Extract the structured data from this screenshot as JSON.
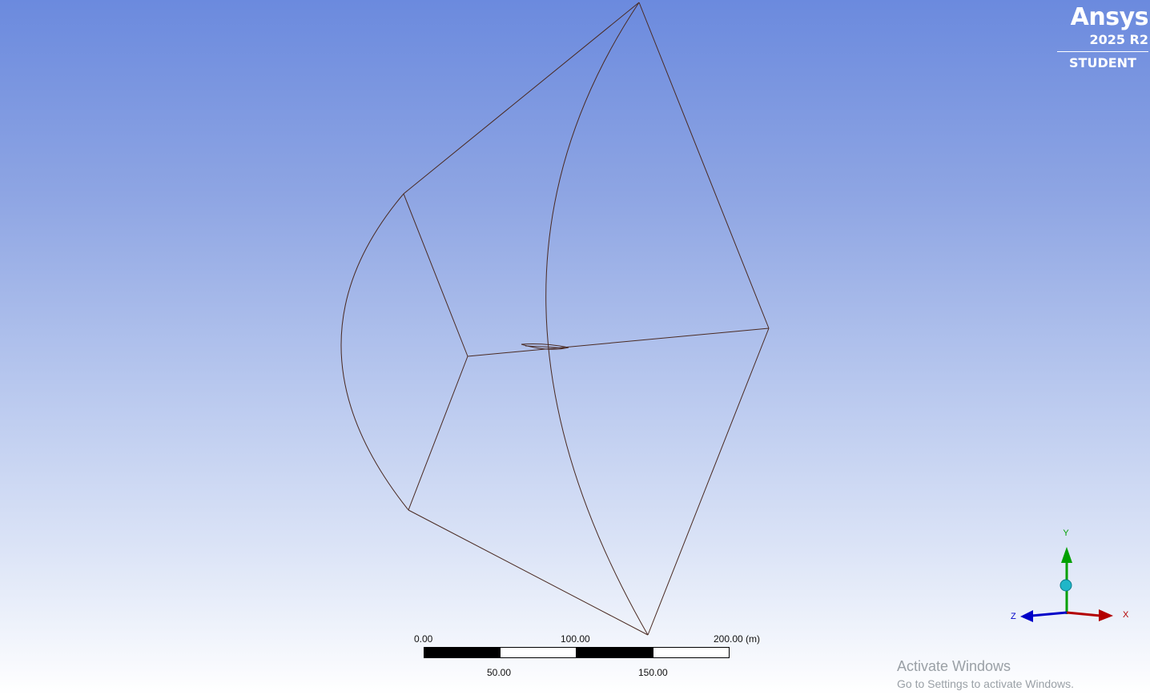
{
  "branding": {
    "product": "Ansys",
    "version": "2025 R2",
    "edition": "STUDENT",
    "color": "#ffffff"
  },
  "viewport": {
    "background_top": "#6b8ade",
    "background_bottom": "#ffffff",
    "edge_color": "#4a2a22"
  },
  "scale_bar": {
    "top_labels": [
      "0.00",
      "100.00",
      "200.00 (m)"
    ],
    "bottom_labels": [
      "50.00",
      "150.00"
    ],
    "segment_colors": [
      "#000000",
      "#ffffff",
      "#000000",
      "#ffffff"
    ]
  },
  "triad": {
    "x_label": "X",
    "y_label": "Y",
    "z_label": "Z",
    "x_color": "#b30000",
    "y_color": "#00a000",
    "z_color": "#0000c8",
    "center_color": "#1fb6c8"
  },
  "watermark": {
    "title": "Activate Windows",
    "subtitle": "Go to Settings to activate Windows."
  }
}
